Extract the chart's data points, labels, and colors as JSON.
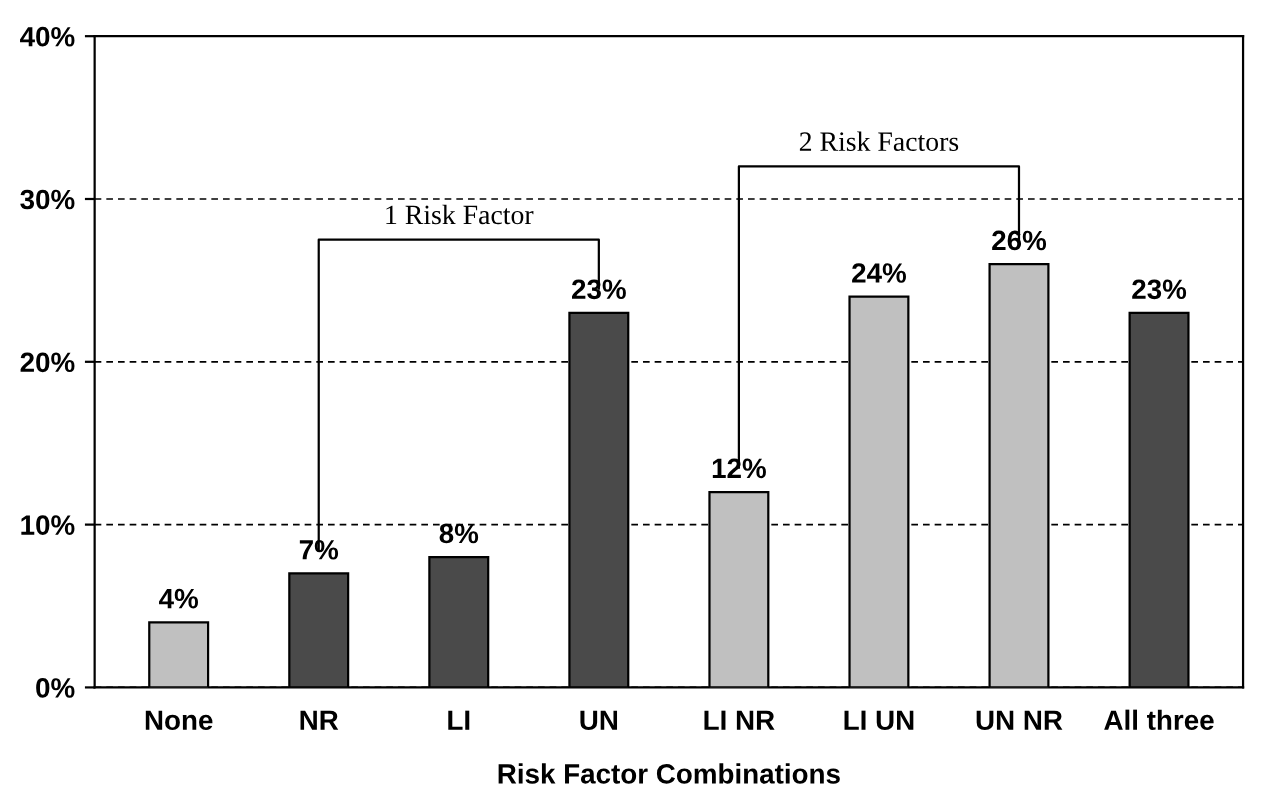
{
  "chart_data": {
    "type": "bar",
    "xlabel": "Risk Factor Combinations",
    "categories": [
      "None",
      "NR",
      "LI",
      "UN",
      "LI NR",
      "LI UN",
      "UN NR",
      "All three"
    ],
    "values": [
      4,
      7,
      8,
      23,
      12,
      24,
      26,
      23
    ],
    "colors": [
      "#c0c0c0",
      "#4a4a4a",
      "#4a4a4a",
      "#4a4a4a",
      "#c0c0c0",
      "#c0c0c0",
      "#c0c0c0",
      "#4a4a4a"
    ],
    "value_labels": [
      "4%",
      "7%",
      "8%",
      "23%",
      "12%",
      "24%",
      "26%",
      "23%"
    ],
    "ylim": [
      0,
      40
    ],
    "yticks": [
      {
        "value": 0,
        "label": "0%"
      },
      {
        "value": 10,
        "label": "10%"
      },
      {
        "value": 20,
        "label": "20%"
      },
      {
        "value": 30,
        "label": "30%"
      },
      {
        "value": 40,
        "label": "40%"
      }
    ],
    "grid": "y",
    "annotations": [
      "1 Risk Factor",
      "2 Risk Factors"
    ]
  }
}
